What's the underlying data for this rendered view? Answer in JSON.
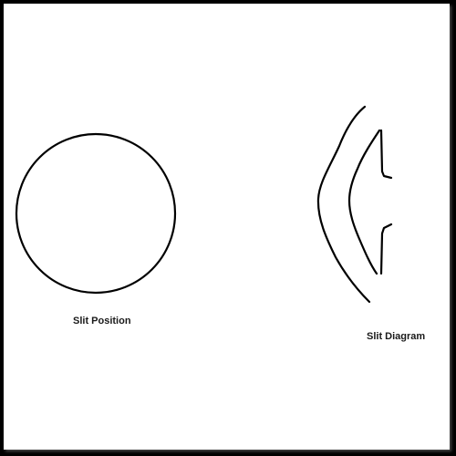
{
  "labels": {
    "slit_position": "Slit Position",
    "slit_diagram": "Slit Diagram"
  },
  "colors": {
    "frame": "#000000",
    "background": "#ffffff",
    "stroke": "#000000"
  }
}
